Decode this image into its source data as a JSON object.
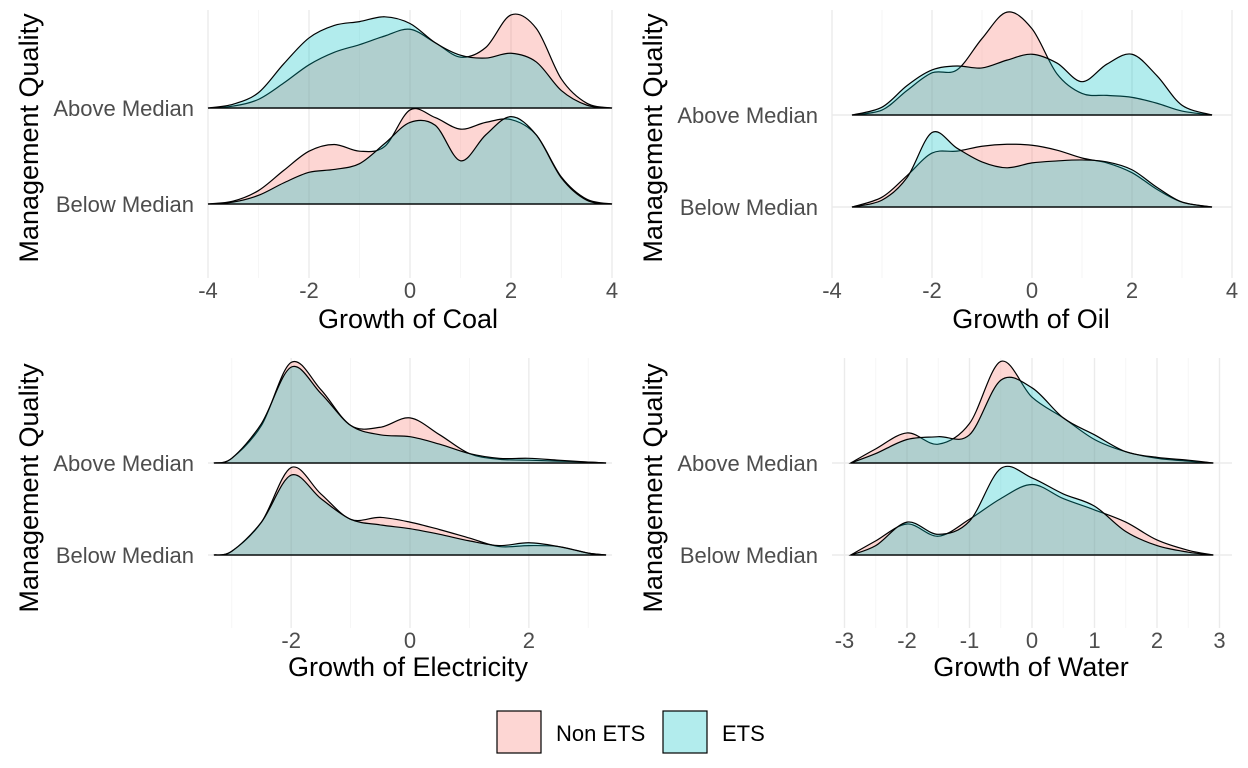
{
  "legend": {
    "items": [
      {
        "label": "Non ETS",
        "color": "#F8766D"
      },
      {
        "label": "ETS",
        "color": "#00BFC4"
      }
    ]
  },
  "chart_data": [
    {
      "type": "area",
      "xlabel": "Growth of Coal",
      "ylabel": "Management Quality",
      "xlim": [
        -4,
        4
      ],
      "xticks": [
        -4,
        -2,
        0,
        2,
        4
      ],
      "categories": [
        "Below Median",
        "Above Median"
      ],
      "grid": true,
      "series": [
        {
          "name": "Non ETS",
          "densities": {
            "Above Median": {
              "x": [
                -4,
                -3.5,
                -3,
                -2.5,
                -2,
                -1.5,
                -1,
                -0.5,
                0,
                0.5,
                1,
                1.5,
                2,
                2.5,
                3,
                3.5,
                4
              ],
              "y": [
                0,
                0.02,
                0.09,
                0.26,
                0.45,
                0.58,
                0.66,
                0.75,
                0.82,
                0.68,
                0.53,
                0.63,
                0.97,
                0.83,
                0.3,
                0.05,
                0
              ]
            },
            "Below Median": {
              "x": [
                -4,
                -3.5,
                -3,
                -2.5,
                -2,
                -1.5,
                -1,
                -0.5,
                0,
                0.5,
                1,
                1.5,
                2,
                2.5,
                3,
                3.5,
                4
              ],
              "y": [
                0,
                0.03,
                0.14,
                0.35,
                0.55,
                0.62,
                0.55,
                0.6,
                0.98,
                0.9,
                0.78,
                0.85,
                0.88,
                0.72,
                0.28,
                0.05,
                0
              ]
            }
          }
        },
        {
          "name": "ETS",
          "densities": {
            "Above Median": {
              "x": [
                -4,
                -3.5,
                -3,
                -2.5,
                -2,
                -1.5,
                -1,
                -0.5,
                0,
                0.5,
                1,
                1.5,
                2,
                2.5,
                3,
                3.5,
                4
              ],
              "y": [
                0,
                0.04,
                0.16,
                0.46,
                0.73,
                0.86,
                0.9,
                0.95,
                0.88,
                0.68,
                0.55,
                0.52,
                0.57,
                0.48,
                0.18,
                0.03,
                0
              ]
            },
            "Below Median": {
              "x": [
                -4,
                -3.5,
                -3,
                -2.5,
                -2,
                -1.5,
                -1,
                -0.5,
                0,
                0.5,
                1,
                1.5,
                2,
                2.5,
                3,
                3.5,
                4
              ],
              "y": [
                0,
                0.02,
                0.09,
                0.22,
                0.33,
                0.36,
                0.42,
                0.63,
                0.85,
                0.82,
                0.45,
                0.72,
                0.91,
                0.72,
                0.27,
                0.04,
                0
              ]
            }
          }
        }
      ]
    },
    {
      "type": "area",
      "xlabel": "Growth of Oil",
      "ylabel": "Management Quality",
      "xlim": [
        -4,
        4
      ],
      "xticks": [
        -4,
        -2,
        0,
        2,
        4
      ],
      "categories": [
        "Below Median",
        "Above Median"
      ],
      "grid": true,
      "series": [
        {
          "name": "Non ETS",
          "densities": {
            "Above Median": {
              "x": [
                -3.6,
                -3,
                -2.5,
                -2,
                -1.5,
                -1,
                -0.5,
                0,
                0.5,
                1,
                1.5,
                2,
                2.5,
                3,
                3.6
              ],
              "y": [
                0,
                0.05,
                0.25,
                0.43,
                0.46,
                0.78,
                1.05,
                0.88,
                0.42,
                0.22,
                0.2,
                0.18,
                0.12,
                0.04,
                0
              ]
            },
            "Below Median": {
              "x": [
                -3.6,
                -3,
                -2.5,
                -2,
                -1.5,
                -1,
                -0.5,
                0,
                0.5,
                1,
                1.5,
                2,
                2.5,
                3,
                3.6
              ],
              "y": [
                0,
                0.1,
                0.32,
                0.55,
                0.57,
                0.62,
                0.64,
                0.63,
                0.58,
                0.5,
                0.45,
                0.35,
                0.18,
                0.05,
                0
              ]
            }
          }
        },
        {
          "name": "ETS",
          "densities": {
            "Above Median": {
              "x": [
                -3.6,
                -3,
                -2.5,
                -2,
                -1.5,
                -1,
                -0.5,
                0,
                0.5,
                1,
                1.5,
                2,
                2.5,
                3,
                3.6
              ],
              "y": [
                0,
                0.08,
                0.3,
                0.46,
                0.5,
                0.48,
                0.56,
                0.62,
                0.53,
                0.34,
                0.52,
                0.62,
                0.4,
                0.1,
                0
              ]
            },
            "Below Median": {
              "x": [
                -3.6,
                -3,
                -2.5,
                -2,
                -1.5,
                -1,
                -0.5,
                0,
                0.5,
                1,
                1.5,
                2,
                2.5,
                3,
                3.6
              ],
              "y": [
                0,
                0.07,
                0.3,
                0.76,
                0.6,
                0.46,
                0.4,
                0.45,
                0.47,
                0.48,
                0.46,
                0.38,
                0.2,
                0.05,
                0
              ]
            }
          }
        }
      ]
    },
    {
      "type": "area",
      "xlabel": "Growth of Electricity",
      "ylabel": "Management Quality",
      "xlim": [
        -3.4,
        3.4
      ],
      "xticks": [
        -2,
        0,
        2
      ],
      "categories": [
        "Below Median",
        "Above Median"
      ],
      "grid": true,
      "series": [
        {
          "name": "Non ETS",
          "densities": {
            "Above Median": {
              "x": [
                -3.3,
                -3,
                -2.5,
                -2,
                -1.5,
                -1,
                -0.5,
                0,
                0.5,
                1,
                1.5,
                2,
                2.5,
                3,
                3.3
              ],
              "y": [
                0,
                0.05,
                0.4,
                1.07,
                0.78,
                0.4,
                0.38,
                0.48,
                0.3,
                0.1,
                0.04,
                0.03,
                0.02,
                0.01,
                0
              ]
            },
            "Below Median": {
              "x": [
                -3.3,
                -3,
                -2.5,
                -2,
                -1.5,
                -1,
                -0.5,
                0,
                0.5,
                1,
                1.5,
                2,
                2.5,
                3,
                3.3
              ],
              "y": [
                0,
                0.04,
                0.35,
                0.93,
                0.65,
                0.38,
                0.4,
                0.35,
                0.27,
                0.18,
                0.09,
                0.1,
                0.09,
                0.02,
                0
              ]
            }
          }
        },
        {
          "name": "ETS",
          "densities": {
            "Above Median": {
              "x": [
                -3.3,
                -3,
                -2.5,
                -2,
                -1.5,
                -1,
                -0.5,
                0,
                0.5,
                1,
                1.5,
                2,
                2.5,
                3,
                3.3
              ],
              "y": [
                0,
                0.05,
                0.42,
                1.02,
                0.74,
                0.4,
                0.3,
                0.28,
                0.2,
                0.1,
                0.05,
                0.05,
                0.03,
                0.01,
                0
              ]
            },
            "Below Median": {
              "x": [
                -3.3,
                -3,
                -2.5,
                -2,
                -1.5,
                -1,
                -0.5,
                0,
                0.5,
                1,
                1.5,
                2,
                2.5,
                3,
                3.3
              ],
              "y": [
                0,
                0.04,
                0.35,
                0.85,
                0.6,
                0.38,
                0.32,
                0.28,
                0.22,
                0.15,
                0.1,
                0.13,
                0.09,
                0.02,
                0
              ]
            }
          }
        }
      ]
    },
    {
      "type": "area",
      "xlabel": "Growth of Water",
      "ylabel": "Management Quality",
      "xlim": [
        -3.2,
        3.2
      ],
      "xticks": [
        -3,
        -2,
        -1,
        0,
        1,
        2,
        3
      ],
      "categories": [
        "Below Median",
        "Above Median"
      ],
      "grid": true,
      "series": [
        {
          "name": "Non ETS",
          "densities": {
            "Above Median": {
              "x": [
                -2.9,
                -2.5,
                -2,
                -1.5,
                -1,
                -0.5,
                0,
                0.5,
                1,
                1.5,
                2,
                2.5,
                2.9
              ],
              "y": [
                0,
                0.15,
                0.32,
                0.2,
                0.42,
                1.08,
                0.7,
                0.48,
                0.25,
                0.12,
                0.05,
                0.02,
                0
              ]
            },
            "Below Median": {
              "x": [
                -2.9,
                -2.5,
                -2,
                -1.5,
                -1,
                -0.5,
                0,
                0.5,
                1,
                1.5,
                2,
                2.5,
                2.9
              ],
              "y": [
                0,
                0.15,
                0.33,
                0.2,
                0.38,
                0.6,
                0.75,
                0.6,
                0.48,
                0.35,
                0.16,
                0.05,
                0
              ]
            }
          }
        },
        {
          "name": "ETS",
          "densities": {
            "Above Median": {
              "x": [
                -2.9,
                -2.5,
                -2,
                -1.5,
                -1,
                -0.5,
                0,
                0.5,
                1,
                1.5,
                2,
                2.5,
                2.9
              ],
              "y": [
                0,
                0.1,
                0.25,
                0.28,
                0.3,
                0.88,
                0.8,
                0.48,
                0.3,
                0.12,
                0.06,
                0.03,
                0
              ]
            },
            "Below Median": {
              "x": [
                -2.9,
                -2.5,
                -2,
                -1.5,
                -1,
                -0.5,
                0,
                0.5,
                1,
                1.5,
                2,
                2.5,
                2.9
              ],
              "y": [
                0,
                0.1,
                0.35,
                0.22,
                0.36,
                0.92,
                0.82,
                0.65,
                0.52,
                0.25,
                0.1,
                0.03,
                0
              ]
            }
          }
        }
      ]
    }
  ]
}
